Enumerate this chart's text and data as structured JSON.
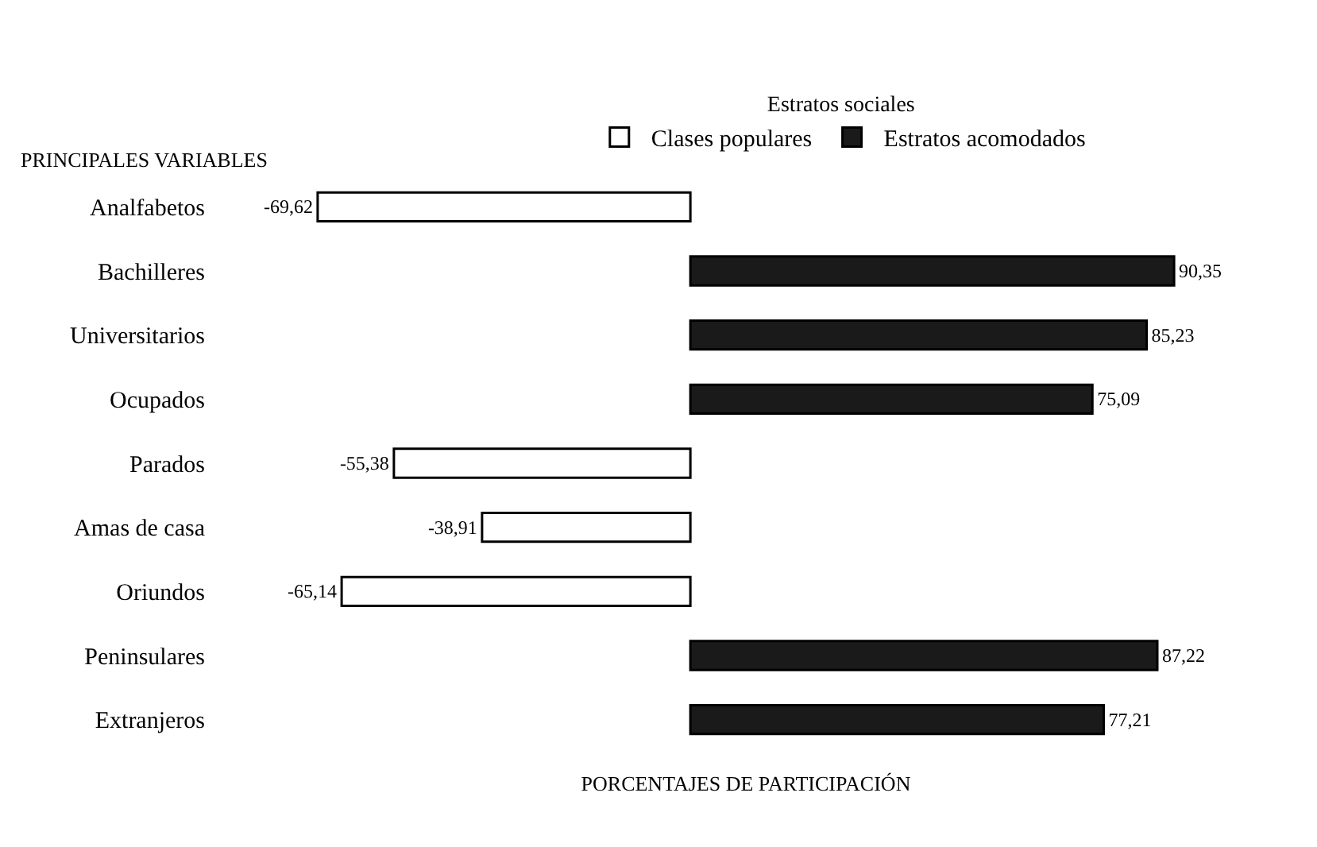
{
  "chart_data": {
    "type": "bar",
    "orientation": "horizontal",
    "legend_title": "Estratos sociales",
    "ylabel": "PRINCIPALES VARIABLES",
    "xlabel": "PORCENTAJES DE PARTICIPACIÓN",
    "categories": [
      "Analfabetos",
      "Bachilleres",
      "Universitarios",
      "Ocupados",
      "Parados",
      "Amas de casa",
      "Oriundos",
      "Peninsulares",
      "Extranjeros"
    ],
    "series": [
      {
        "name": "Clases populares",
        "color": "#ffffff",
        "values": [
          -69.62,
          null,
          null,
          null,
          -55.38,
          -38.91,
          -65.14,
          null,
          null
        ],
        "value_labels": [
          "-69,62",
          null,
          null,
          null,
          "-55,38",
          "-38,91",
          "-65,14",
          null,
          null
        ]
      },
      {
        "name": "Estratos acomodados",
        "color": "#1a1a1a",
        "values": [
          null,
          90.35,
          85.23,
          75.09,
          null,
          null,
          null,
          87.22,
          77.21
        ],
        "value_labels": [
          null,
          "90,35",
          "85,23",
          "75,09",
          null,
          null,
          null,
          "87,22",
          "77,21"
        ]
      }
    ],
    "legend": "top",
    "tick_labels": "y"
  }
}
